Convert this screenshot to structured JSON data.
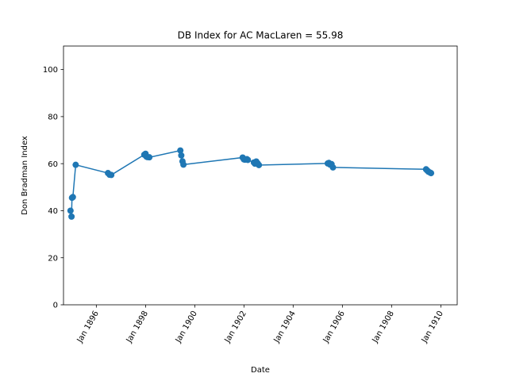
{
  "chart_data": {
    "type": "line",
    "title": "DB Index for AC MacLaren = 55.98",
    "xlabel": "Date",
    "ylabel": "Don Bradman Index",
    "ylim": [
      0,
      110
    ],
    "xlim": [
      "1894-09-01",
      "1910-09-01"
    ],
    "yticks": [
      0,
      20,
      40,
      60,
      80,
      100
    ],
    "xticks": [
      {
        "date": "1896-01-01",
        "label": "Jan 1896"
      },
      {
        "date": "1898-01-01",
        "label": "Jan 1898"
      },
      {
        "date": "1900-01-01",
        "label": "Jan 1900"
      },
      {
        "date": "1902-01-01",
        "label": "Jan 1902"
      },
      {
        "date": "1904-01-01",
        "label": "Jan 1904"
      },
      {
        "date": "1906-01-01",
        "label": "Jan 1906"
      },
      {
        "date": "1908-01-01",
        "label": "Jan 1908"
      },
      {
        "date": "1910-01-01",
        "label": "Jan 1910"
      }
    ],
    "grid": false,
    "color": "#1f77b4",
    "series": [
      {
        "x": [
          "1894-12-14",
          "1894-12-29",
          "1895-01-05",
          "1895-01-18",
          "1895-03-01",
          "1896-06-22",
          "1896-07-16",
          "1896-08-10",
          "1897-12-13",
          "1898-01-01",
          "1898-01-14",
          "1898-01-28",
          "1898-02-26",
          "1899-06-01",
          "1899-06-15",
          "1899-07-03",
          "1899-07-17",
          "1901-12-13",
          "1902-01-01",
          "1902-01-17",
          "1902-02-14",
          "1902-02-28",
          "1902-05-29",
          "1902-06-12",
          "1902-07-03",
          "1902-07-24",
          "1902-08-11",
          "1905-05-29",
          "1905-06-15",
          "1905-07-03",
          "1905-07-24",
          "1905-08-14",
          "1909-05-27",
          "1909-06-14",
          "1909-07-01",
          "1909-07-26",
          "1909-08-09"
        ],
        "y": [
          40.0,
          37.5,
          45.5,
          45.8,
          59.5,
          56.0,
          55.3,
          55.2,
          63.8,
          64.2,
          63.0,
          62.8,
          62.7,
          65.6,
          63.5,
          61.0,
          59.6,
          62.6,
          61.8,
          61.7,
          61.9,
          61.6,
          60.5,
          60.0,
          60.9,
          60.1,
          59.4,
          60.1,
          60.3,
          59.6,
          59.8,
          58.4,
          57.6,
          57.1,
          56.6,
          56.2,
          55.98
        ]
      }
    ]
  }
}
